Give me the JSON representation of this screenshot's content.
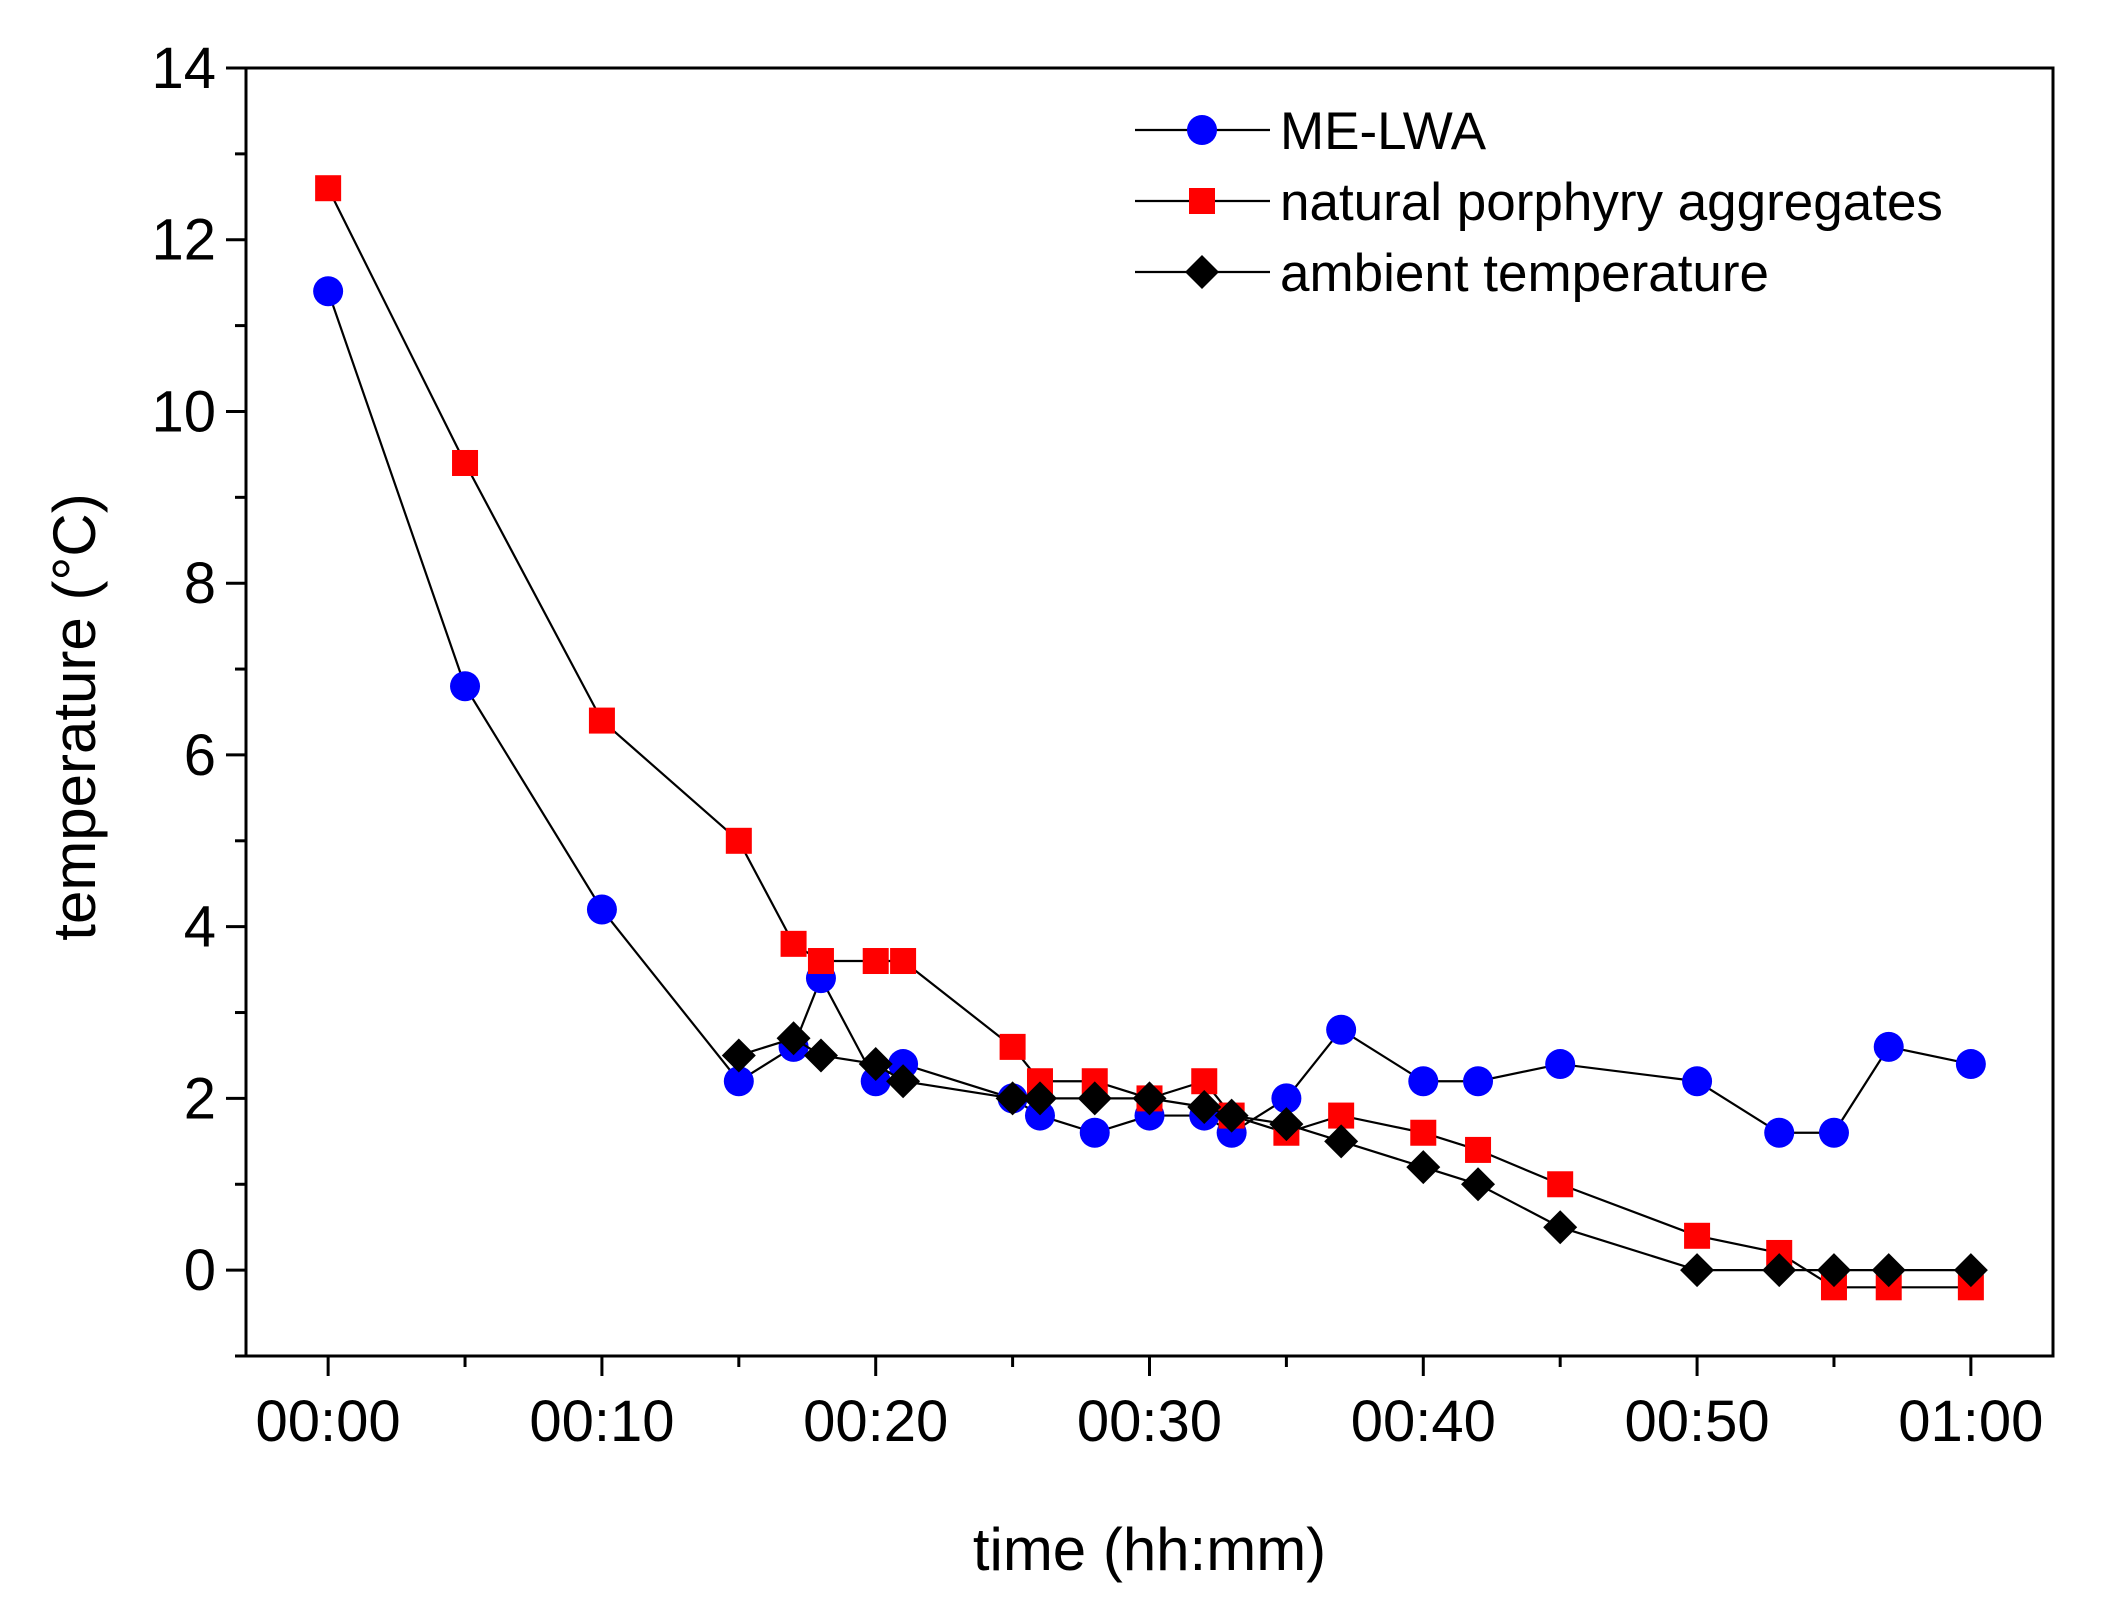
{
  "chart_data": {
    "type": "line",
    "xlabel": "time (hh:mm)",
    "ylabel": "temperature (°C)",
    "xlim": [
      -3,
      63
    ],
    "ylim": [
      -1,
      14
    ],
    "xticks": [
      {
        "value": 0,
        "label": "00:00"
      },
      {
        "value": 10,
        "label": "00:10"
      },
      {
        "value": 20,
        "label": "00:20"
      },
      {
        "value": 30,
        "label": "00:30"
      },
      {
        "value": 40,
        "label": "00:40"
      },
      {
        "value": 50,
        "label": "00:50"
      },
      {
        "value": 60,
        "label": "01:00"
      }
    ],
    "yticks": [
      {
        "value": 0,
        "label": "0"
      },
      {
        "value": 2,
        "label": "2"
      },
      {
        "value": 4,
        "label": "4"
      },
      {
        "value": 6,
        "label": "6"
      },
      {
        "value": 8,
        "label": "8"
      },
      {
        "value": 10,
        "label": "10"
      },
      {
        "value": 12,
        "label": "12"
      },
      {
        "value": 14,
        "label": "14"
      }
    ],
    "legend_position": "top-right",
    "series": [
      {
        "name": "ME-LWA",
        "marker": "circle",
        "color": "#0000ff",
        "x": [
          0,
          5,
          10,
          15,
          17,
          18,
          20,
          21,
          25,
          26,
          28,
          30,
          32,
          33,
          35,
          37,
          40,
          42,
          45,
          50,
          53,
          55,
          57,
          60
        ],
        "y": [
          11.4,
          6.8,
          4.2,
          2.2,
          2.6,
          3.4,
          2.2,
          2.4,
          2.0,
          1.8,
          1.6,
          1.8,
          1.8,
          1.6,
          2.0,
          2.8,
          2.2,
          2.2,
          2.4,
          2.2,
          1.6,
          1.6,
          2.6,
          2.4
        ]
      },
      {
        "name": "natural porphyry aggregates",
        "marker": "square",
        "color": "#ff0000",
        "x": [
          0,
          5,
          10,
          15,
          17,
          18,
          20,
          21,
          25,
          26,
          28,
          30,
          32,
          33,
          35,
          37,
          40,
          42,
          45,
          50,
          53,
          55,
          57,
          60
        ],
        "y": [
          12.6,
          9.4,
          6.4,
          5.0,
          3.8,
          3.6,
          3.6,
          3.6,
          2.6,
          2.2,
          2.2,
          2.0,
          2.2,
          1.8,
          1.6,
          1.8,
          1.6,
          1.4,
          1.0,
          0.4,
          0.2,
          -0.2,
          -0.2,
          -0.2
        ]
      },
      {
        "name": "ambient temperature",
        "marker": "diamond",
        "color": "#000000",
        "x": [
          15,
          17,
          18,
          20,
          21,
          25,
          26,
          28,
          30,
          32,
          33,
          35,
          37,
          40,
          42,
          45,
          50,
          53,
          55,
          57,
          60
        ],
        "y": [
          2.5,
          2.7,
          2.5,
          2.4,
          2.2,
          2.0,
          2.0,
          2.0,
          2.0,
          1.9,
          1.8,
          1.7,
          1.5,
          1.2,
          1.0,
          0.5,
          0.0,
          0.0,
          0.0,
          0.0,
          0.0
        ]
      }
    ]
  }
}
